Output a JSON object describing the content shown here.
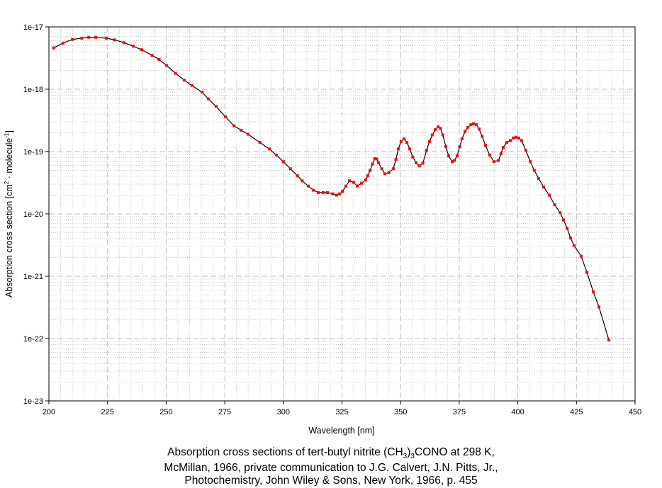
{
  "chart_data": {
    "type": "line",
    "title": "",
    "xlabel": "Wavelength [nm]",
    "ylabel_parts": {
      "a": "Absorption cross section [cm",
      "sup1": "2",
      "b": " · molecule",
      "sup2": "-1",
      "c": "]"
    },
    "xlim": [
      200,
      450
    ],
    "ylim": [
      1e-23,
      1e-17
    ],
    "yscale": "log",
    "grid": true,
    "x_ticks": [
      "200",
      "225",
      "250",
      "275",
      "300",
      "325",
      "350",
      "375",
      "400",
      "425",
      "450"
    ],
    "y_ticks": [
      "1e-17",
      "1e-18",
      "1e-19",
      "1e-20",
      "1e-21",
      "1e-22",
      "1e-23"
    ],
    "line_color": "#000000",
    "marker_color": "#ff0000",
    "series": [
      {
        "name": "tert-butyl nitrite",
        "x": [
          202,
          206,
          210,
          214,
          217,
          220,
          224.5,
          228,
          232,
          236,
          239.6,
          244,
          247,
          250.2,
          254,
          257.7,
          261,
          265.3,
          268,
          271.3,
          275.3,
          278.9,
          282,
          284.9,
          290,
          294,
          297,
          300,
          303,
          306,
          308,
          310.6,
          312.8,
          314.9,
          317,
          318.8,
          321,
          322.7,
          324,
          325.2,
          326.7,
          328.2,
          330,
          331.5,
          333.3,
          335.1,
          336,
          337,
          338,
          339,
          339.8,
          340.6,
          342,
          343.3,
          345,
          346.9,
          348,
          349,
          350.2,
          351.5,
          352.7,
          353.9,
          355.2,
          356.6,
          358,
          359.5,
          361.1,
          362.3,
          363.5,
          364.8,
          366,
          367,
          368,
          369.3,
          370.5,
          372,
          373,
          374.1,
          375.2,
          376.2,
          377.5,
          378.7,
          380,
          381.1,
          382.3,
          383.5,
          384.8,
          386.2,
          388,
          389.8,
          391.7,
          392.8,
          393.8,
          395.3,
          396.8,
          398,
          399.2,
          400.4,
          401.6,
          403.4,
          405.3,
          407,
          408.9,
          411,
          413.4,
          415.7,
          418,
          419.5,
          421,
          422.5,
          424,
          427,
          429.5,
          432.2,
          434.6,
          438.8
        ],
        "y": [
          4.6e-18,
          5.5e-18,
          6.3e-18,
          6.6e-18,
          6.8e-18,
          6.8e-18,
          6.6e-18,
          6.2e-18,
          5.6e-18,
          4.9e-18,
          4.3e-18,
          3.5e-18,
          3e-18,
          2.4e-18,
          1.8e-18,
          1.4e-18,
          1.15e-18,
          9e-19,
          7e-19,
          5.3e-19,
          3.6e-19,
          2.6e-19,
          2.2e-19,
          1.9e-19,
          1.4e-19,
          1.1e-19,
          8.8e-20,
          6.9e-20,
          5.3e-20,
          4.1e-20,
          3.4e-20,
          2.8e-20,
          2.4e-20,
          2.2e-20,
          2.2e-20,
          2.2e-20,
          2.1e-20,
          2e-20,
          2.1e-20,
          2.3e-20,
          2.8e-20,
          3.4e-20,
          3.2e-20,
          2.8e-20,
          3.1e-20,
          3.5e-20,
          4.1e-20,
          5e-20,
          6.3e-20,
          7.7e-20,
          7.6e-20,
          6.6e-20,
          5.3e-20,
          4.4e-20,
          4.6e-20,
          5.3e-20,
          7.5e-20,
          1.1e-19,
          1.45e-19,
          1.6e-19,
          1.4e-19,
          1.1e-19,
          8.2e-20,
          6.6e-20,
          5.9e-20,
          6.5e-20,
          1.05e-19,
          1.45e-19,
          1.85e-19,
          2.25e-19,
          2.5e-19,
          2.35e-19,
          1.85e-19,
          1.2e-19,
          8.5e-20,
          6.9e-20,
          7.2e-20,
          8.5e-20,
          1.2e-19,
          1.6e-19,
          2.1e-19,
          2.45e-19,
          2.7e-19,
          2.8e-19,
          2.7e-19,
          2.3e-19,
          1.75e-19,
          1.26e-19,
          8.8e-20,
          6.9e-20,
          7.2e-20,
          9.2e-20,
          1.17e-19,
          1.4e-19,
          1.5e-19,
          1.65e-19,
          1.7e-19,
          1.65e-19,
          1.5e-19,
          1.05e-19,
          6.9e-20,
          5e-20,
          3.7e-20,
          2.7e-20,
          2e-20,
          1.4e-20,
          1.05e-20,
          8e-21,
          5.9e-21,
          4.1e-21,
          3.1e-21,
          2.1e-21,
          1.15e-21,
          5.6e-22,
          3.2e-22,
          9.5e-23
        ]
      }
    ]
  },
  "caption": {
    "line1_a": "Absorption cross sections of tert-butyl nitrite (CH",
    "line1_sub1": "3",
    "line1_b": ")",
    "line1_sub2": "3",
    "line1_c": "CONO at 298 K,",
    "line2": "McMillan, 1966, private communication to J.G. Calvert, J.N. Pitts, Jr.,",
    "line3": "Photochemistry, John Wiley & Sons, New York, 1966, p. 455"
  }
}
